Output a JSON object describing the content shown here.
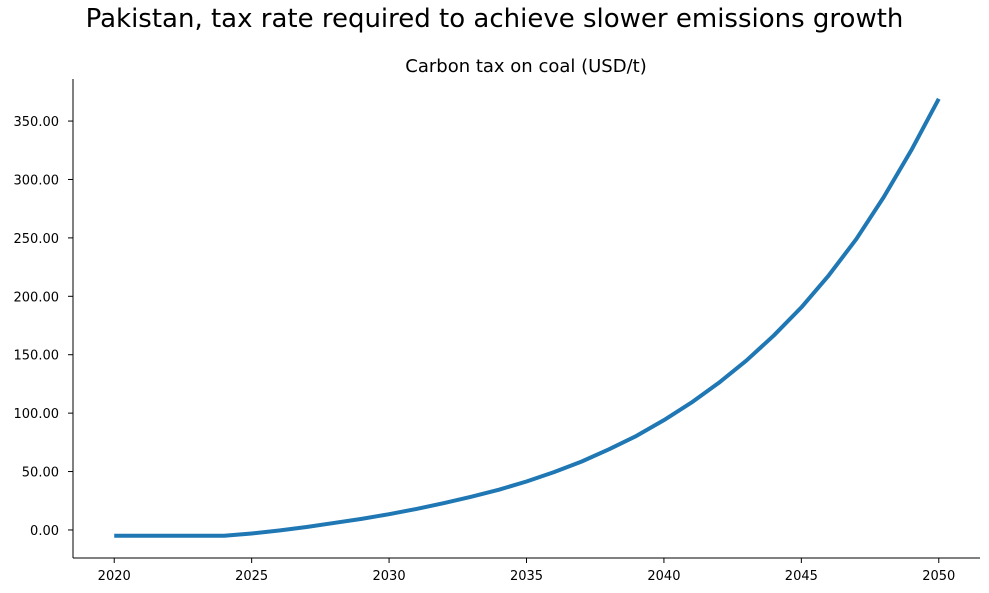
{
  "figure": {
    "suptitle": "Pakistan, tax rate required to achieve slower emissions growth"
  },
  "chart_data": {
    "type": "line",
    "title": "Carbon tax on coal (USD/t)",
    "xlabel": "",
    "ylabel": "",
    "xlim": [
      2018.5,
      2051.5
    ],
    "ylim": [
      -24,
      386
    ],
    "xticks": [
      2020,
      2025,
      2030,
      2035,
      2040,
      2045,
      2050
    ],
    "xtick_labels": [
      "2020",
      "2025",
      "2030",
      "2035",
      "2040",
      "2045",
      "2050"
    ],
    "yticks": [
      0,
      50,
      100,
      150,
      200,
      250,
      300,
      350
    ],
    "ytick_labels": [
      "0.00",
      "50.00",
      "100.00",
      "150.00",
      "200.00",
      "250.00",
      "300.00",
      "350.00"
    ],
    "grid": false,
    "legend": "none",
    "series": [
      {
        "color": "#1f77b4",
        "x": [
          2020,
          2021,
          2022,
          2023,
          2024,
          2025,
          2026,
          2027,
          2028,
          2029,
          2030,
          2031,
          2032,
          2033,
          2034,
          2035,
          2036,
          2037,
          2038,
          2039,
          2040,
          2041,
          2042,
          2043,
          2044,
          2045,
          2046,
          2047,
          2048,
          2049,
          2050
        ],
        "y": [
          -5,
          -5,
          -5,
          -5,
          -5,
          -3,
          -0.5,
          2.5,
          6,
          9.5,
          13.5,
          18,
          23,
          28.5,
          34.5,
          41.5,
          49.5,
          58.5,
          69,
          80.5,
          94,
          109,
          126,
          145,
          166.5,
          190.5,
          218,
          249,
          285,
          325,
          369
        ]
      }
    ]
  }
}
